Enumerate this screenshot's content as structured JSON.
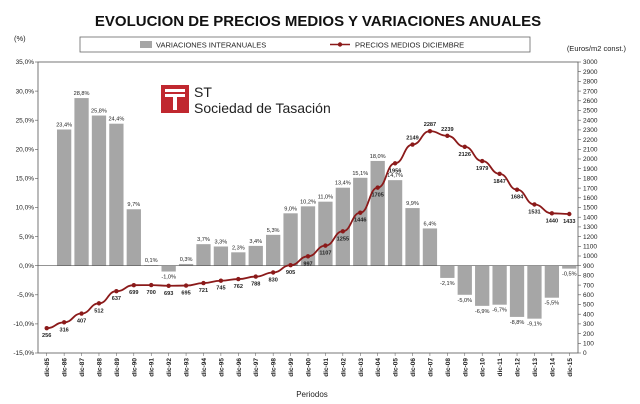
{
  "colors": {
    "bar": "#a6a6a6",
    "line": "#8b1a1a",
    "logo": "#c0282f"
  },
  "logo": {
    "abbr": "ST",
    "name": "Sociedad de Tasación"
  },
  "chart_data": {
    "type": "bar+line",
    "title": "EVOLUCION DE PRECIOS MEDIOS Y VARIACIONES ANUALES",
    "ylabel_left": "(%)",
    "ylabel_right": "(Euros/m2 const.)",
    "xlabel": "Periodos",
    "legend": {
      "bars": "VARIACIONES INTERANUALES",
      "line": "PRECIOS MEDIOS DICIEMBRE"
    },
    "categories": [
      "dic-85",
      "dic-86",
      "dic-87",
      "dic-88",
      "dic-89",
      "dic-90",
      "dic-91",
      "dic-92",
      "dic-93",
      "dic-94",
      "dic-95",
      "dic-96",
      "dic-97",
      "dic-98",
      "dic-99",
      "dic-00",
      "dic-01",
      "dic-02",
      "dic-03",
      "dic-04",
      "dic-05",
      "dic-06",
      "dic-07",
      "dic-08",
      "dic-09",
      "dic-10",
      "dic-11",
      "dic-12",
      "dic-13",
      "dic-14",
      "dic-15"
    ],
    "series": [
      {
        "name": "VARIACIONES INTERANUALES",
        "axis": "left",
        "values": [
          null,
          23.4,
          28.8,
          25.8,
          24.4,
          9.7,
          0.1,
          -1.0,
          0.3,
          3.7,
          3.3,
          2.3,
          3.4,
          5.3,
          9.0,
          10.2,
          11.0,
          13.4,
          15.1,
          18.0,
          14.7,
          9.9,
          6.4,
          -2.1,
          -5.0,
          -6.9,
          -6.7,
          -8.8,
          -9.1,
          -5.5,
          -0.5
        ],
        "labels": [
          "",
          "23,4%",
          "28,8%",
          "25,8%",
          "24,4%",
          "9,7%",
          "0,1%",
          "-1,0%",
          "0,3%",
          "3,7%",
          "3,3%",
          "2,3%",
          "3,4%",
          "5,3%",
          "9,0%",
          "10,2%",
          "11,0%",
          "13,4%",
          "15,1%",
          "18,0%",
          "14,7%",
          "9,9%",
          "6,4%",
          "-2,1%",
          "-5,0%",
          "-6,9%",
          "-6,7%",
          "-8,8%",
          "-9,1%",
          "-5,5%",
          "-0,5%"
        ]
      },
      {
        "name": "PRECIOS MEDIOS DICIEMBRE",
        "axis": "right",
        "values": [
          256,
          316,
          407,
          512,
          637,
          699,
          700,
          693,
          695,
          721,
          745,
          762,
          788,
          830,
          905,
          997,
          1107,
          1255,
          1446,
          1705,
          1956,
          2149,
          2287,
          2239,
          2126,
          1979,
          1847,
          1684,
          1531,
          1440,
          1433
        ]
      }
    ],
    "ylim_left": [
      -15,
      35
    ],
    "yticks_left": [
      "-15,0%",
      "-10,0%",
      "-5,0%",
      "0,0%",
      "5,0%",
      "10,0%",
      "15,0%",
      "20,0%",
      "25,0%",
      "30,0%",
      "35,0%"
    ],
    "ylim_right": [
      0,
      3000
    ],
    "yticks_right": [
      "0",
      "100",
      "200",
      "300",
      "400",
      "500",
      "600",
      "700",
      "800",
      "900",
      "1000",
      "1100",
      "1200",
      "1300",
      "1400",
      "1500",
      "1600",
      "1700",
      "1800",
      "1900",
      "2000",
      "2100",
      "2200",
      "2300",
      "2400",
      "2500",
      "2600",
      "2700",
      "2800",
      "2900",
      "3000"
    ],
    "grid": false
  }
}
